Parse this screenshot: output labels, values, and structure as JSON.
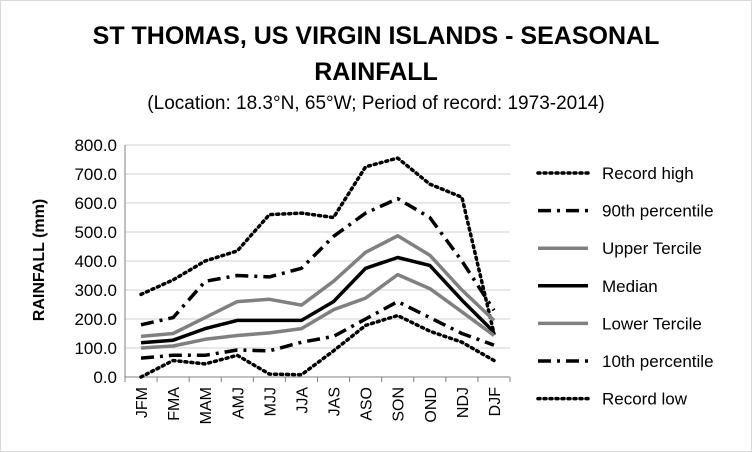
{
  "chart_data": {
    "type": "line",
    "title_line1": "ST THOMAS, US VIRGIN ISLANDS - SEASONAL",
    "title_line2": "RAINFALL",
    "subtitle": "(Location: 18.3°N, 65°W; Period of record: 1973-2014)",
    "xlabel": "",
    "ylabel": "RAINFALL (mm)",
    "ylim": [
      0,
      800
    ],
    "yticks": [
      "0.0",
      "100.0",
      "200.0",
      "300.0",
      "400.0",
      "500.0",
      "600.0",
      "700.0",
      "800.0"
    ],
    "categories": [
      "JFM",
      "FMA",
      "MAM",
      "AMJ",
      "MJJ",
      "JJA",
      "JAS",
      "ASO",
      "SON",
      "OND",
      "NDJ",
      "DJF"
    ],
    "grid": true,
    "legend_position": "right",
    "series": [
      {
        "name": "Record high",
        "color": "#000000",
        "style": "dotted",
        "values": [
          285,
          335,
          400,
          435,
          560,
          565,
          550,
          725,
          755,
          665,
          620,
          150
        ]
      },
      {
        "name": "90th percentile",
        "color": "#000000",
        "style": "dashdot",
        "values": [
          180,
          205,
          330,
          350,
          345,
          375,
          485,
          565,
          615,
          550,
          400,
          230
        ]
      },
      {
        "name": "Upper Tercile",
        "color": "#808080",
        "style": "solid",
        "values": [
          140,
          150,
          205,
          260,
          268,
          248,
          330,
          430,
          487,
          420,
          300,
          195
        ]
      },
      {
        "name": "Median",
        "color": "#000000",
        "style": "solid",
        "values": [
          118,
          127,
          167,
          195,
          195,
          195,
          260,
          375,
          412,
          385,
          265,
          155
        ]
      },
      {
        "name": "Lower Tercile",
        "color": "#808080",
        "style": "solid",
        "values": [
          100,
          107,
          130,
          143,
          152,
          167,
          232,
          272,
          353,
          305,
          225,
          143
        ]
      },
      {
        "name": "10th percentile",
        "color": "#000000",
        "style": "dashdot",
        "values": [
          65,
          75,
          75,
          93,
          90,
          120,
          140,
          200,
          260,
          205,
          150,
          110
        ]
      },
      {
        "name": "Record low",
        "color": "#000000",
        "style": "dotted",
        "values": [
          0,
          57,
          45,
          75,
          10,
          8,
          90,
          178,
          212,
          158,
          120,
          57
        ]
      }
    ]
  }
}
